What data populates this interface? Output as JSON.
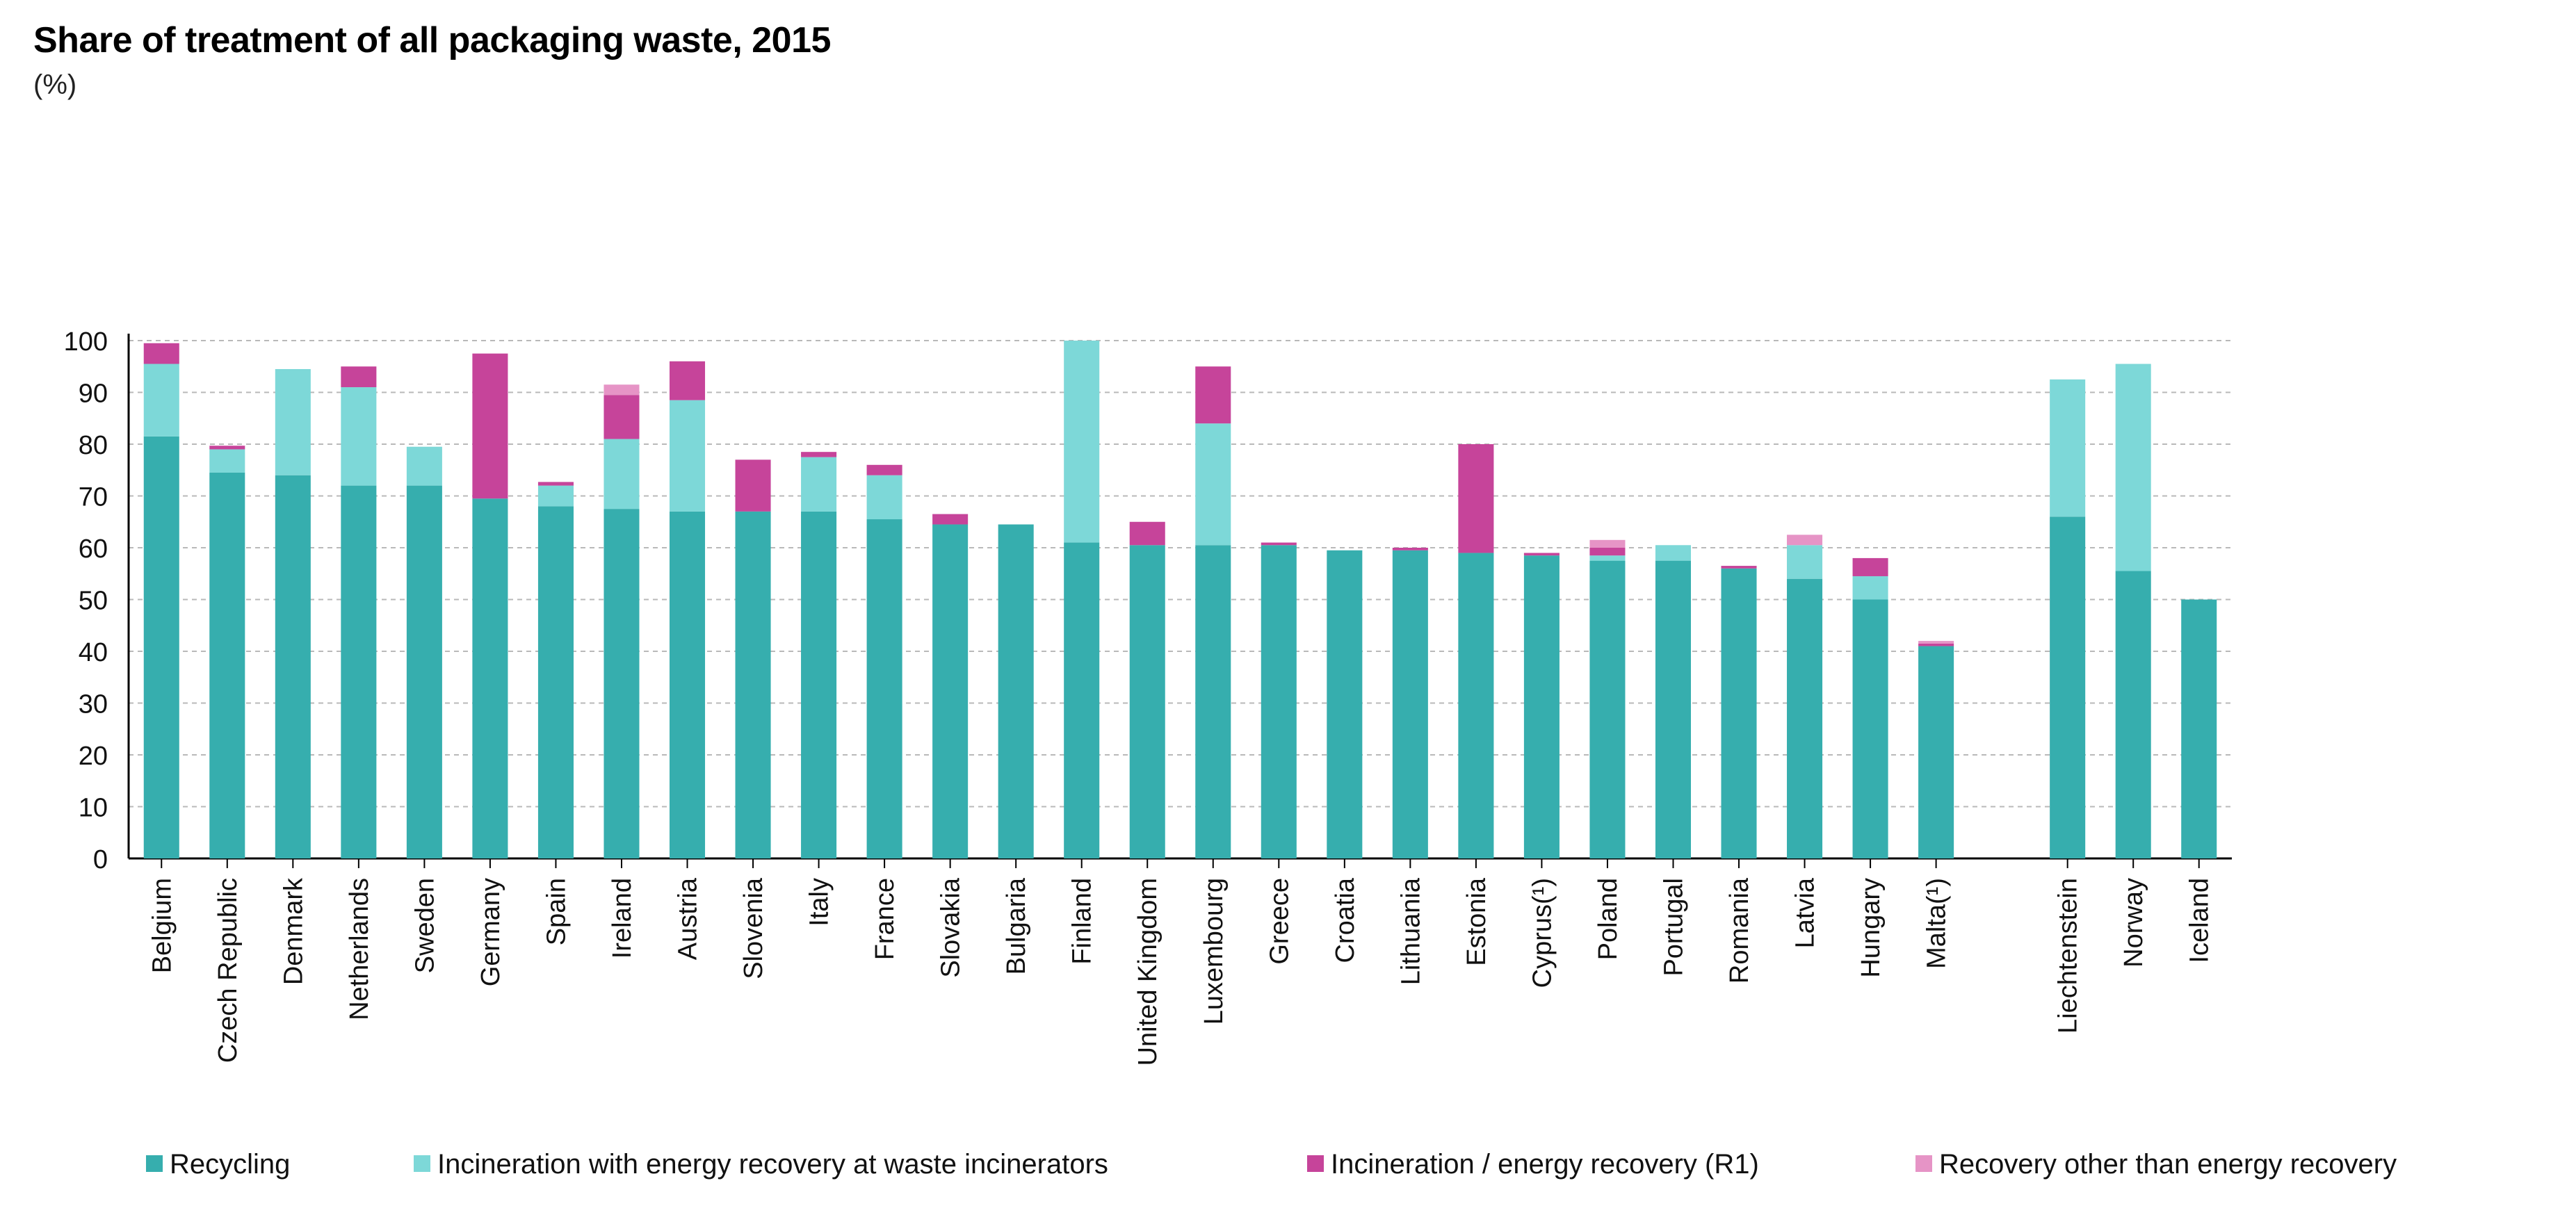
{
  "chart_data": {
    "type": "bar",
    "stacked": true,
    "title": "Share of treatment of all packaging waste, 2015",
    "subtitle": "(%)",
    "xlabel": "",
    "ylabel": "",
    "ylim": [
      0,
      100
    ],
    "yticks": [
      0,
      10,
      20,
      30,
      40,
      50,
      60,
      70,
      80,
      90,
      100
    ],
    "grid": true,
    "legend_position": "bottom",
    "categories": [
      "Belgium",
      "Czech Republic",
      "Denmark",
      "Netherlands",
      "Sweden",
      "Germany",
      "Spain",
      "Ireland",
      "Austria",
      "Slovenia",
      "Italy",
      "France",
      "Slovakia",
      "Bulgaria",
      "Finland",
      "United Kingdom",
      "Luxembourg",
      "Greece",
      "Croatia",
      "Lithuania",
      "Estonia",
      "Cyprus(¹)",
      "Poland",
      "Portugal",
      "Romania",
      "Latvia",
      "Hungary",
      "Malta(¹)",
      "",
      "Liechtenstein",
      "Norway",
      "Iceland"
    ],
    "series": [
      {
        "name": "Recycling",
        "color": "#36aeae",
        "values": [
          81.5,
          74.5,
          74,
          72,
          72,
          69.5,
          68,
          67.5,
          67,
          67,
          67,
          65.5,
          64.5,
          64.5,
          61,
          60.5,
          60.5,
          60.5,
          59.5,
          59.5,
          59,
          58.5,
          57.5,
          57.5,
          56,
          54,
          50,
          41,
          null,
          66,
          55.5,
          50
        ]
      },
      {
        "name": "Incineration with energy recovery at waste incinerators",
        "color": "#7dd8d8",
        "values": [
          14,
          4.5,
          20.5,
          19,
          7.5,
          0,
          4,
          13.5,
          21.5,
          0,
          10.5,
          8.5,
          0,
          0,
          39,
          0,
          23.5,
          0,
          0,
          0,
          0,
          0,
          1,
          3,
          0,
          6.5,
          4.5,
          0,
          null,
          26.5,
          40,
          0
        ]
      },
      {
        "name": "Incineration / energy recovery (R1)",
        "color": "#c6449a",
        "values": [
          4,
          0.7,
          0,
          4,
          0,
          28,
          0.7,
          8.5,
          7.5,
          10,
          1,
          2,
          2,
          0,
          0,
          4.5,
          11,
          0.5,
          0,
          0.5,
          21,
          0.5,
          1.5,
          0,
          0.5,
          0,
          3.5,
          0.5,
          null,
          0,
          0,
          0
        ]
      },
      {
        "name": "Recovery other than energy recovery",
        "color": "#e694c6",
        "values": [
          0,
          0,
          0,
          0,
          0,
          0,
          0,
          2,
          0,
          0,
          0,
          0,
          0,
          0,
          0,
          0,
          0,
          0,
          0,
          0,
          0,
          0,
          1.5,
          0,
          0,
          2,
          0,
          0.5,
          null,
          0,
          0,
          0
        ]
      }
    ]
  }
}
